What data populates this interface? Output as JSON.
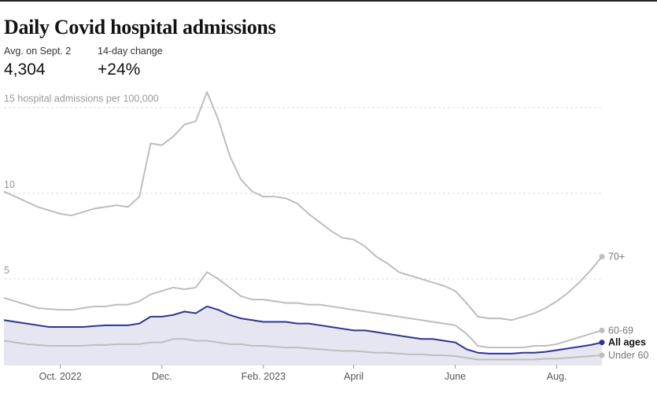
{
  "header": {
    "title": "Daily Covid hospital admissions",
    "stats": [
      {
        "label": "Avg. on Sept. 2",
        "value": "4,304"
      },
      {
        "label": "14-day change",
        "value": "+24%"
      }
    ]
  },
  "chart_data": {
    "type": "line",
    "categories": [
      null,
      null,
      null,
      null,
      null,
      "Oct. 2022",
      null,
      null,
      null,
      null,
      null,
      null,
      null,
      null,
      "Dec.",
      null,
      null,
      null,
      null,
      null,
      null,
      null,
      null,
      "Feb. 2023",
      null,
      null,
      null,
      null,
      null,
      null,
      null,
      "April",
      null,
      null,
      null,
      null,
      null,
      null,
      null,
      null,
      "June",
      null,
      null,
      null,
      null,
      null,
      null,
      null,
      null,
      "Aug.",
      null,
      null,
      null,
      null
    ],
    "ylim": [
      0,
      16.5
    ],
    "yticks": [
      5,
      10,
      {
        "value": 15,
        "label": "15 hospital admissions per 100,000"
      }
    ],
    "grid": true,
    "series": [
      {
        "name": "70+",
        "color": "#bdbdbd",
        "values": [
          10.1,
          9.8,
          9.5,
          9.2,
          9.0,
          8.8,
          8.7,
          8.9,
          9.1,
          9.2,
          9.3,
          9.2,
          9.8,
          12.9,
          12.8,
          13.3,
          14.0,
          14.2,
          15.9,
          14.3,
          12.2,
          10.8,
          10.1,
          9.8,
          9.8,
          9.7,
          9.4,
          8.8,
          8.3,
          7.8,
          7.4,
          7.3,
          6.9,
          6.3,
          5.9,
          5.4,
          5.2,
          5.0,
          4.8,
          4.6,
          4.3,
          3.6,
          2.8,
          2.7,
          2.7,
          2.6,
          2.8,
          3.0,
          3.3,
          3.7,
          4.2,
          4.8,
          5.5,
          6.3
        ]
      },
      {
        "name": "60-69",
        "color": "#bdbdbd",
        "values": [
          3.9,
          3.7,
          3.5,
          3.3,
          3.25,
          3.2,
          3.2,
          3.3,
          3.4,
          3.4,
          3.5,
          3.5,
          3.7,
          4.1,
          4.3,
          4.5,
          4.4,
          4.5,
          5.4,
          5.0,
          4.5,
          4.0,
          3.8,
          3.8,
          3.7,
          3.6,
          3.6,
          3.5,
          3.5,
          3.4,
          3.3,
          3.2,
          3.1,
          3.0,
          2.9,
          2.8,
          2.7,
          2.6,
          2.5,
          2.4,
          2.3,
          1.8,
          1.1,
          1.0,
          1.0,
          1.0,
          1.0,
          1.1,
          1.1,
          1.2,
          1.4,
          1.6,
          1.8,
          2.0
        ]
      },
      {
        "name": "All ages",
        "color": "#2c3590",
        "area_color": "#e6e6f3",
        "values": [
          2.6,
          2.5,
          2.4,
          2.3,
          2.2,
          2.2,
          2.2,
          2.2,
          2.25,
          2.3,
          2.3,
          2.3,
          2.4,
          2.8,
          2.8,
          2.9,
          3.1,
          3.0,
          3.4,
          3.2,
          2.9,
          2.7,
          2.6,
          2.5,
          2.5,
          2.5,
          2.4,
          2.4,
          2.3,
          2.2,
          2.1,
          2.0,
          2.0,
          1.9,
          1.8,
          1.7,
          1.6,
          1.5,
          1.5,
          1.4,
          1.3,
          0.9,
          0.7,
          0.65,
          0.65,
          0.65,
          0.7,
          0.7,
          0.75,
          0.85,
          0.95,
          1.05,
          1.15,
          1.3
        ]
      },
      {
        "name": "Under 60",
        "color": "#bdbdbd",
        "values": [
          1.4,
          1.3,
          1.2,
          1.15,
          1.1,
          1.1,
          1.1,
          1.1,
          1.15,
          1.15,
          1.2,
          1.2,
          1.2,
          1.3,
          1.3,
          1.5,
          1.5,
          1.4,
          1.4,
          1.3,
          1.2,
          1.2,
          1.1,
          1.1,
          1.05,
          1.0,
          1.0,
          0.95,
          0.9,
          0.85,
          0.8,
          0.8,
          0.75,
          0.7,
          0.7,
          0.65,
          0.6,
          0.6,
          0.55,
          0.55,
          0.5,
          0.4,
          0.3,
          0.3,
          0.3,
          0.3,
          0.3,
          0.3,
          0.35,
          0.35,
          0.4,
          0.45,
          0.5,
          0.55
        ]
      }
    ]
  }
}
